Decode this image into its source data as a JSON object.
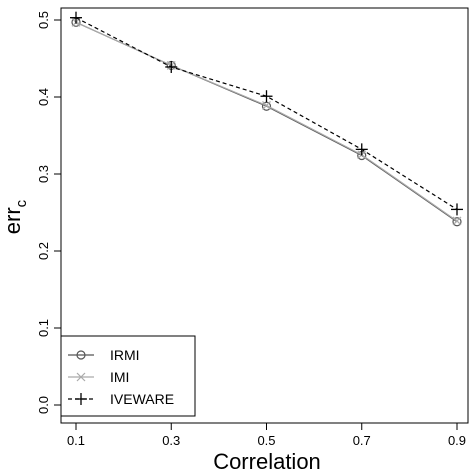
{
  "chart_data": {
    "type": "line",
    "xlabel": "Correlation",
    "ylabel_main": "err",
    "ylabel_sub": "c",
    "x": [
      0.1,
      0.3,
      0.5,
      0.7,
      0.9
    ],
    "x_ticks": [
      "0.1",
      "0.3",
      "0.5",
      "0.7",
      "0.9"
    ],
    "y_ticks": [
      "0.0",
      "0.1",
      "0.2",
      "0.3",
      "0.4",
      "0.5"
    ],
    "xlim": [
      0.1,
      0.9
    ],
    "ylim": [
      0.0,
      0.5
    ],
    "grid": false,
    "legend_position": "bottom-left",
    "series": [
      {
        "name": "IRMI",
        "values": [
          0.497,
          0.441,
          0.388,
          0.324,
          0.238
        ],
        "color": "#555555",
        "marker": "circle",
        "dash": "solid"
      },
      {
        "name": "IMI",
        "values": [
          0.497,
          0.441,
          0.389,
          0.325,
          0.239
        ],
        "color": "#aaaaaa",
        "marker": "cross",
        "dash": "solid"
      },
      {
        "name": "IVEWARE",
        "values": [
          0.503,
          0.439,
          0.401,
          0.332,
          0.254
        ],
        "color": "#000000",
        "marker": "plus",
        "dash": "dashed"
      }
    ]
  }
}
